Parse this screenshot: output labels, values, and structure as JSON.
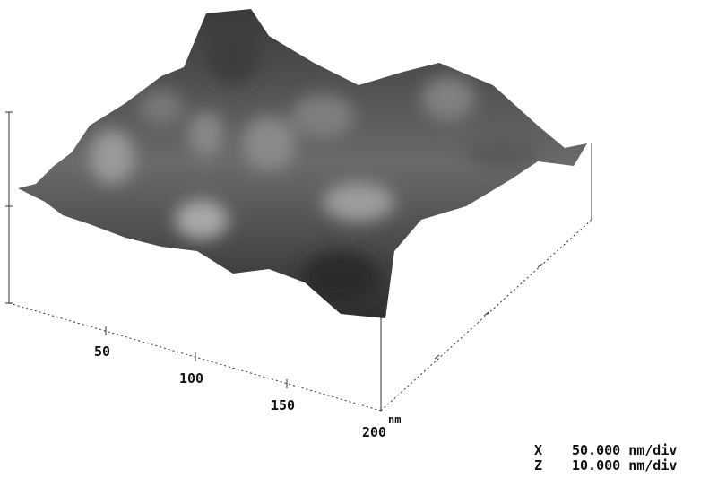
{
  "axis": {
    "ticks": [
      50,
      100,
      150,
      200
    ],
    "unit": "nm"
  },
  "scale": [
    {
      "axis": "X",
      "value": "50.000 nm/div"
    },
    {
      "axis": "Z",
      "value": "10.000 nm/div"
    }
  ]
}
